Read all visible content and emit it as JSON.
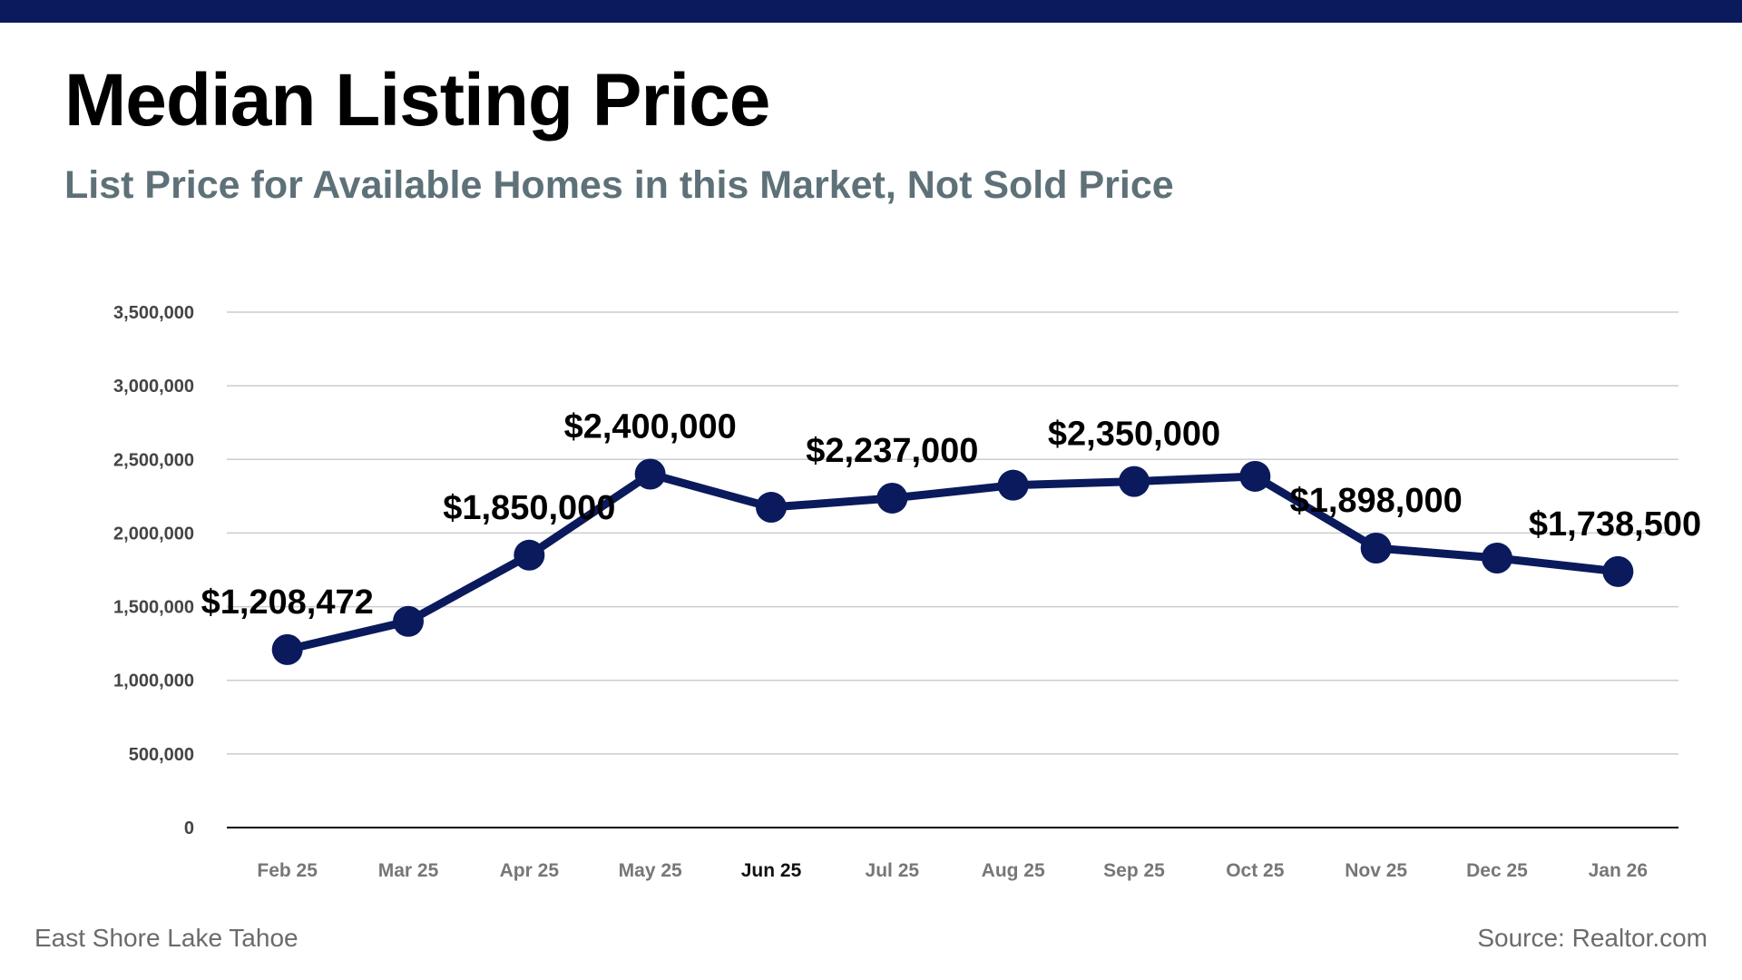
{
  "header": {
    "title": "Median Listing Price",
    "subtitle": "List Price for Available Homes in this Market, Not Sold Price"
  },
  "footer": {
    "location": "East Shore Lake Tahoe",
    "source": "Source: Realtor.com"
  },
  "colors": {
    "topBar": "#0a1a5c",
    "line": "#0a1a5c",
    "grid": "#cccccc",
    "subtitle": "#5e7178"
  },
  "chart_data": {
    "type": "line",
    "title": "",
    "xlabel": "",
    "ylabel": "",
    "ylim": [
      0,
      3500000
    ],
    "yticks": [
      0,
      500000,
      1000000,
      1500000,
      2000000,
      2500000,
      3000000,
      3500000
    ],
    "ytick_labels": [
      "0",
      "500,000",
      "1,000,000",
      "1,500,000",
      "2,000,000",
      "2,500,000",
      "3,000,000",
      "3,500,000"
    ],
    "grid": true,
    "categories": [
      "Feb 25",
      "Mar 25",
      "Apr 25",
      "May 25",
      "Jun 25",
      "Jul 25",
      "Aug 25",
      "Sep 25",
      "Oct 25",
      "Nov 25",
      "Dec 25",
      "Jan 26"
    ],
    "highlighted_category": "Jun 25",
    "series": [
      {
        "values": [
          1208472,
          1400000,
          1850000,
          2400000,
          2175000,
          2237000,
          2325000,
          2350000,
          2385000,
          1898000,
          1830000,
          1738500
        ]
      }
    ],
    "data_labels": [
      {
        "index": 0,
        "text": "$1,208,472"
      },
      {
        "index": 2,
        "text": "$1,850,000"
      },
      {
        "index": 3,
        "text": "$2,400,000"
      },
      {
        "index": 5,
        "text": "$2,237,000"
      },
      {
        "index": 7,
        "text": "$2,350,000"
      },
      {
        "index": 9,
        "text": "$1,898,000"
      },
      {
        "index": 11,
        "text": "$1,738,500"
      }
    ]
  }
}
